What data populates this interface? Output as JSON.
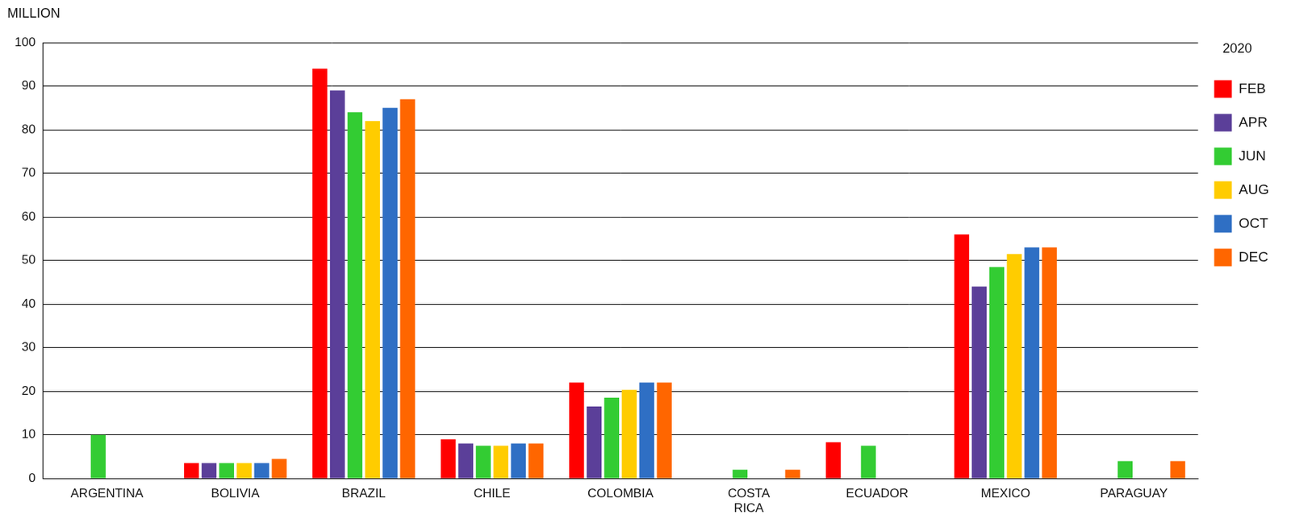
{
  "chart_data": {
    "type": "bar",
    "y_label": "MILLION",
    "categories": [
      "ARGENTINA",
      "BOLIVIA",
      "BRAZIL",
      "CHILE",
      "COLOMBIA",
      "COSTA RICA",
      "ECUADOR",
      "MEXICO",
      "PARAGUAY"
    ],
    "legend_title": "2020",
    "series": [
      {
        "name": "FEB",
        "color": "#ff0000",
        "values": [
          null,
          3.5,
          94,
          9,
          22,
          null,
          8.3,
          56,
          null
        ]
      },
      {
        "name": "APR",
        "color": "#5b3f99",
        "values": [
          null,
          3.5,
          89,
          8,
          16.5,
          null,
          null,
          44,
          null
        ]
      },
      {
        "name": "JUN",
        "color": "#33cc33",
        "values": [
          10,
          3.5,
          84,
          7.5,
          18.5,
          2,
          7.5,
          48.5,
          4
        ]
      },
      {
        "name": "AUG",
        "color": "#ffcc00",
        "values": [
          null,
          3.5,
          82,
          7.5,
          20.3,
          null,
          null,
          51.5,
          null
        ]
      },
      {
        "name": "OCT",
        "color": "#2f6fc4",
        "values": [
          null,
          3.5,
          85,
          8,
          22,
          null,
          null,
          53,
          null
        ]
      },
      {
        "name": "DEC",
        "color": "#ff6600",
        "values": [
          null,
          4.5,
          87,
          8,
          22,
          2,
          null,
          53,
          4
        ]
      }
    ],
    "ylim": [
      0,
      100
    ],
    "yticks": [
      0,
      10,
      20,
      30,
      40,
      50,
      60,
      70,
      80,
      90,
      100
    ],
    "grid": true,
    "legend": "right"
  }
}
